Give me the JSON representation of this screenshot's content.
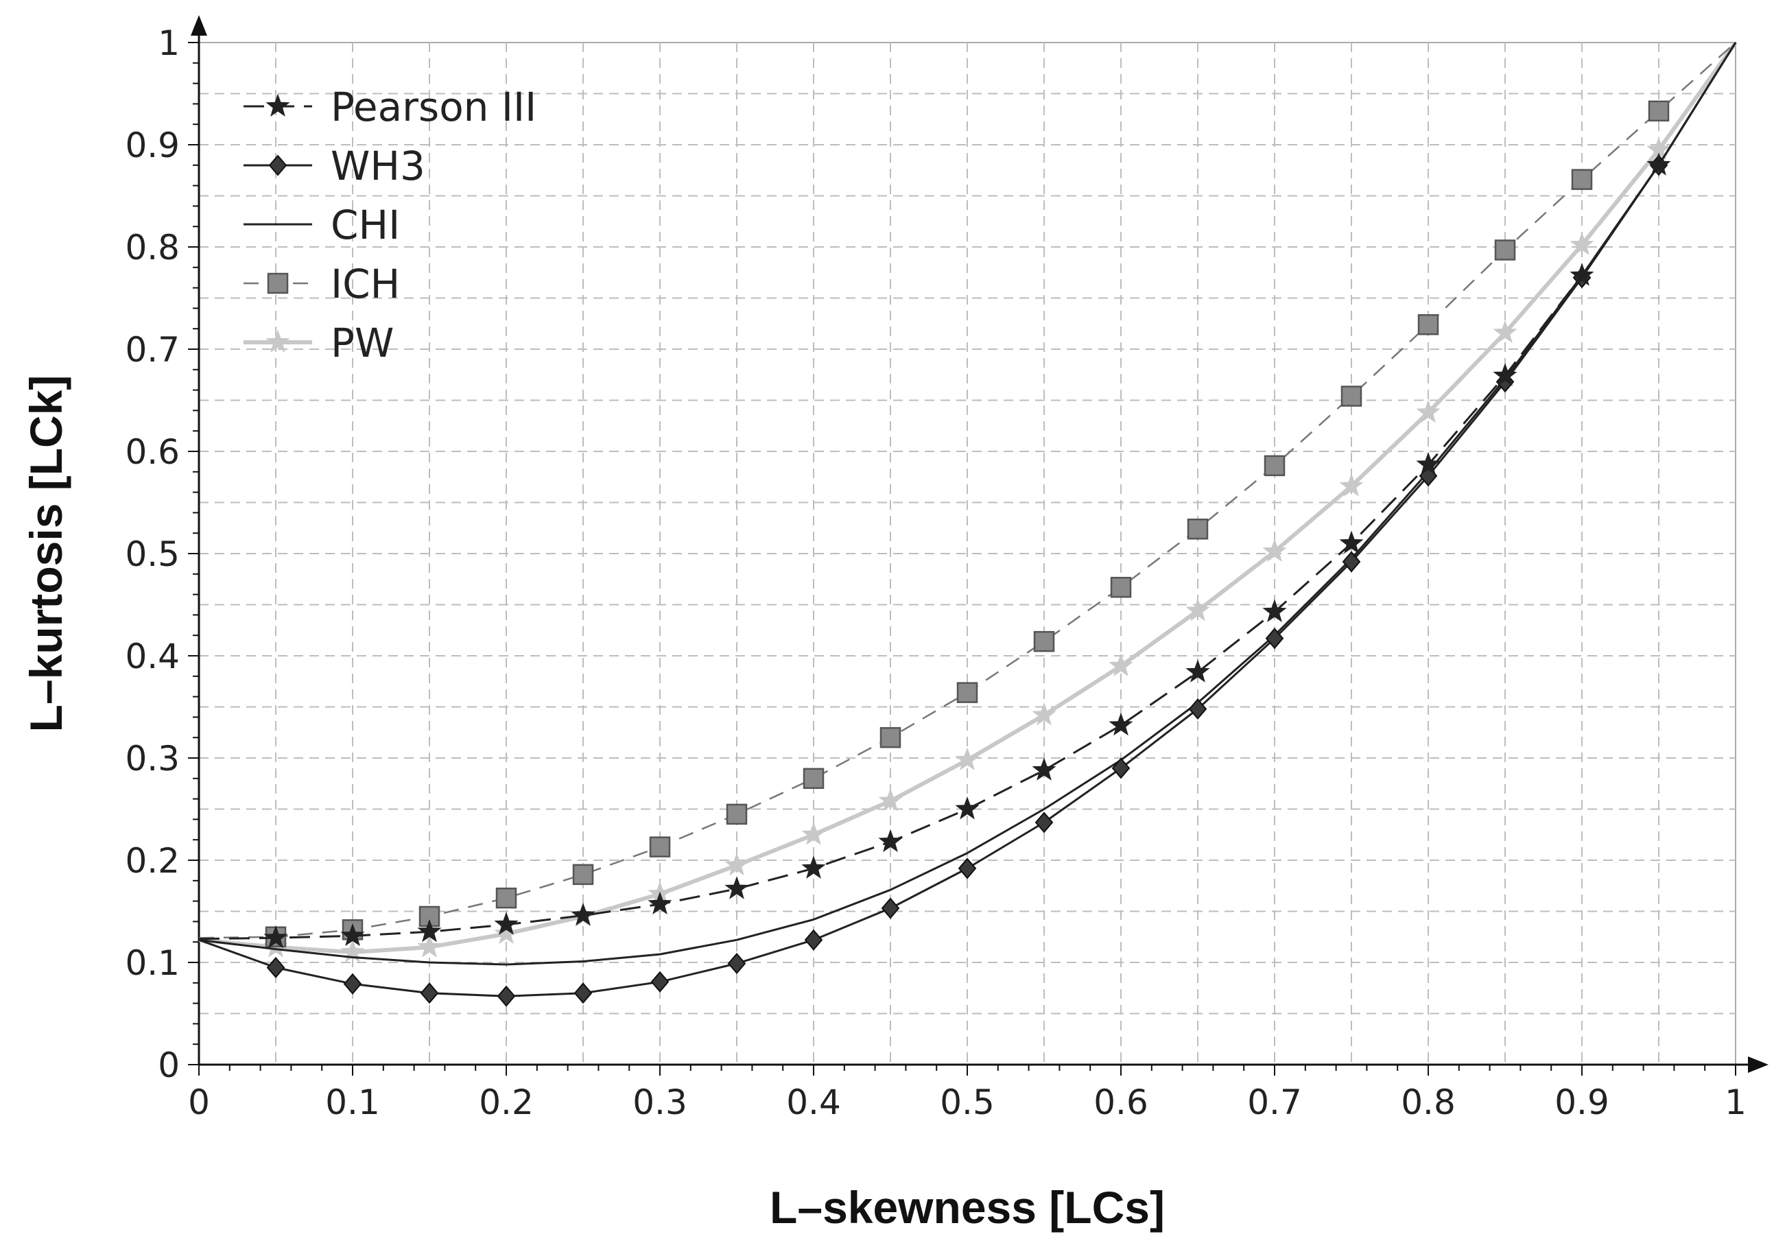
{
  "chart_data": {
    "type": "line",
    "xlabel": "L–skewness [LCs]",
    "ylabel": "L–kurtosis [LCk]",
    "xlim": [
      0,
      1
    ],
    "ylim": [
      0,
      1
    ],
    "xticks": [
      "0",
      "0.1",
      "0.2",
      "0.3",
      "0.4",
      "0.5",
      "0.6",
      "0.7",
      "0.8",
      "0.9",
      "1"
    ],
    "yticks": [
      "0",
      "0.1",
      "0.2",
      "0.3",
      "0.4",
      "0.5",
      "0.6",
      "0.7",
      "0.8",
      "0.9",
      "1"
    ],
    "grid": true,
    "legend_position": "top-left",
    "series": [
      {
        "name": "Pearson III",
        "color": "#222222",
        "line_style": "dashed",
        "marker": "star",
        "x": [
          0,
          0.05,
          0.1,
          0.15,
          0.2,
          0.25,
          0.3,
          0.35,
          0.4,
          0.45,
          0.5,
          0.55,
          0.6,
          0.65,
          0.7,
          0.75,
          0.8,
          0.85,
          0.9,
          0.95,
          1
        ],
        "y": [
          0.123,
          0.124,
          0.126,
          0.13,
          0.137,
          0.146,
          0.157,
          0.172,
          0.192,
          0.218,
          0.25,
          0.288,
          0.332,
          0.384,
          0.443,
          0.51,
          0.587,
          0.674,
          0.772,
          0.88,
          1.0
        ]
      },
      {
        "name": "WH3",
        "color": "#222222",
        "line_style": "solid",
        "marker": "diamond",
        "x": [
          0,
          0.05,
          0.1,
          0.15,
          0.2,
          0.25,
          0.3,
          0.35,
          0.4,
          0.45,
          0.5,
          0.55,
          0.6,
          0.65,
          0.7,
          0.75,
          0.8,
          0.85,
          0.9,
          0.95,
          1
        ],
        "y": [
          0.122,
          0.095,
          0.079,
          0.07,
          0.067,
          0.07,
          0.081,
          0.099,
          0.122,
          0.153,
          0.192,
          0.237,
          0.29,
          0.348,
          0.417,
          0.492,
          0.576,
          0.668,
          0.77,
          0.88,
          1.0
        ]
      },
      {
        "name": "CHI",
        "color": "#222222",
        "line_style": "solid",
        "marker": "none",
        "x": [
          0,
          0.05,
          0.1,
          0.15,
          0.2,
          0.25,
          0.3,
          0.35,
          0.4,
          0.45,
          0.5,
          0.55,
          0.6,
          0.65,
          0.7,
          0.75,
          0.8,
          0.85,
          0.9,
          0.95,
          1
        ],
        "y": [
          0.122,
          0.113,
          0.105,
          0.1,
          0.098,
          0.101,
          0.108,
          0.122,
          0.142,
          0.171,
          0.207,
          0.25,
          0.298,
          0.354,
          0.42,
          0.495,
          0.58,
          0.671,
          0.772,
          0.88,
          1.0
        ]
      },
      {
        "name": "ICH",
        "color": "#777777",
        "line_style": "dashed",
        "marker": "square",
        "x": [
          0,
          0.05,
          0.1,
          0.15,
          0.2,
          0.25,
          0.3,
          0.35,
          0.4,
          0.45,
          0.5,
          0.55,
          0.6,
          0.65,
          0.7,
          0.75,
          0.8,
          0.85,
          0.9,
          0.95,
          1
        ],
        "y": [
          0.124,
          0.125,
          0.132,
          0.145,
          0.163,
          0.186,
          0.213,
          0.245,
          0.28,
          0.32,
          0.364,
          0.414,
          0.467,
          0.524,
          0.586,
          0.654,
          0.724,
          0.797,
          0.866,
          0.933,
          1.0
        ]
      },
      {
        "name": "PW",
        "color": "#c8c8c8",
        "line_style": "solid",
        "marker": "star",
        "x": [
          0,
          0.05,
          0.1,
          0.15,
          0.2,
          0.25,
          0.3,
          0.35,
          0.4,
          0.45,
          0.5,
          0.55,
          0.6,
          0.65,
          0.7,
          0.75,
          0.8,
          0.85,
          0.9,
          0.95,
          1
        ],
        "y": [
          0.122,
          0.115,
          0.11,
          0.115,
          0.128,
          0.145,
          0.167,
          0.195,
          0.225,
          0.258,
          0.298,
          0.342,
          0.39,
          0.444,
          0.502,
          0.566,
          0.638,
          0.716,
          0.802,
          0.895,
          1.0
        ]
      }
    ]
  }
}
